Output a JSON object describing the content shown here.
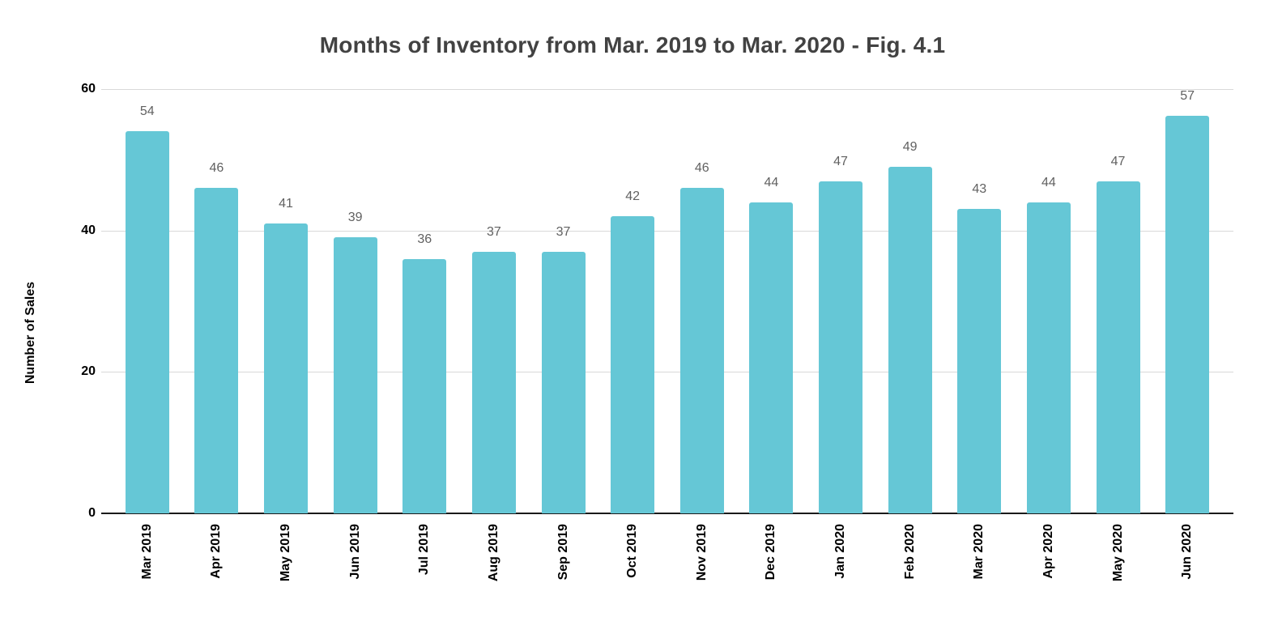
{
  "title": "Months of Inventory from Mar. 2019 to Mar. 2020 - Fig. 4.1",
  "chart_data": {
    "type": "bar",
    "title": "Months of Inventory from Mar. 2019 to Mar. 2020 - Fig. 4.1",
    "categories": [
      "Mar 2019",
      "Apr 2019",
      "May 2019",
      "Jun 2019",
      "Jul 2019",
      "Aug 2019",
      "Sep 2019",
      "Oct 2019",
      "Nov 2019",
      "Dec 2019",
      "Jan 2020",
      "Feb 2020",
      "Mar 2020",
      "Apr 2020",
      "May 2020",
      "Jun 2020"
    ],
    "values": [
      54,
      46,
      41,
      39,
      36,
      37,
      37,
      42,
      46,
      44,
      47,
      49,
      43,
      44,
      47,
      57
    ],
    "xlabel": "",
    "ylabel": "Number of Sales",
    "ylim": [
      0,
      60
    ],
    "yticks": [
      0,
      20,
      40,
      60
    ],
    "grid": true,
    "legend_position": "none",
    "value_labels_shown": true,
    "colors": {
      "bar": "#65C7D6",
      "title": "#424242",
      "value_label": "#616161",
      "axis_text": "#000000",
      "gridline": "#d9d9d9",
      "axis_line": "#1a1a1a"
    }
  }
}
